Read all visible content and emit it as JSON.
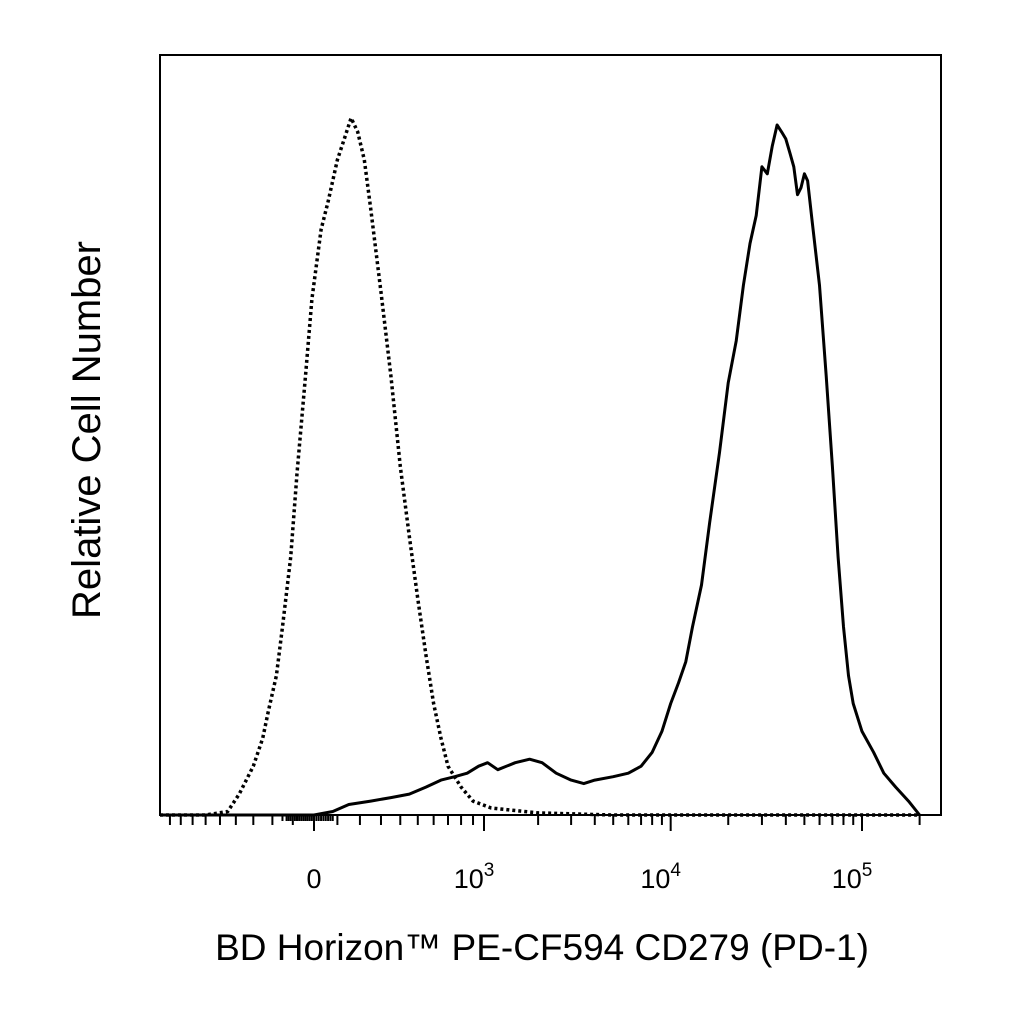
{
  "chart_data": {
    "type": "line",
    "title": "",
    "xlabel": "BD Horizon™ PE-CF594 CD279 (PD-1)",
    "ylabel": "Relative Cell Number",
    "x_scale": "biexponential",
    "xlim": [
      -1000,
      200000
    ],
    "ylim": [
      0,
      100
    ],
    "grid": false,
    "legend": "none",
    "x_tick_labels": [
      {
        "value": 0,
        "base": "0",
        "exp": ""
      },
      {
        "value": 1000,
        "base": "10",
        "exp": "3"
      },
      {
        "value": 10000,
        "base": "10",
        "exp": "4"
      },
      {
        "value": 100000,
        "base": "10",
        "exp": "5"
      }
    ],
    "series": [
      {
        "style": "dotted",
        "color": "#000000",
        "x": [
          -1000,
          -600,
          -450,
          -380,
          -300,
          -250,
          -220,
          -180,
          -150,
          -110,
          -80,
          -40,
          -10,
          30,
          60,
          100,
          130,
          160,
          190,
          220,
          250,
          300,
          350,
          400,
          450,
          500,
          550,
          600,
          650,
          700,
          800,
          900,
          1100,
          2000,
          5000,
          20000,
          200000
        ],
        "y": [
          0,
          0,
          0.5,
          3,
          7,
          11,
          15,
          20,
          27,
          37,
          49,
          63,
          74,
          84,
          88,
          94,
          97,
          100,
          98,
          94,
          87,
          75,
          63,
          50,
          40,
          31,
          23,
          16,
          11,
          7,
          4,
          2,
          1,
          0.3,
          0,
          0,
          0
        ]
      },
      {
        "style": "solid",
        "color": "#000000",
        "x": [
          -1000,
          0,
          80,
          150,
          250,
          350,
          450,
          550,
          650,
          750,
          850,
          950,
          1050,
          1200,
          1500,
          1800,
          2100,
          2500,
          3000,
          3500,
          4000,
          5000,
          6000,
          7000,
          8000,
          9000,
          10000,
          11000,
          12000,
          13000,
          14500,
          16000,
          18000,
          20000,
          22000,
          24000,
          26000,
          28000,
          30000,
          32000,
          34000,
          36000,
          38000,
          40000,
          42000,
          44000,
          46000,
          48000,
          50000,
          52000,
          55000,
          60000,
          65000,
          70000,
          75000,
          80000,
          85000,
          90000,
          100000,
          115000,
          130000,
          150000,
          175000,
          200000
        ],
        "y": [
          0,
          0,
          0.5,
          1.5,
          2,
          2.5,
          3,
          4,
          5,
          5.5,
          6,
          7,
          7.5,
          6.5,
          7.5,
          8,
          7.5,
          6,
          5,
          4.5,
          5,
          5.5,
          6,
          7,
          9,
          12,
          16,
          19,
          22,
          27,
          33,
          42,
          52,
          62,
          68,
          76,
          82,
          86,
          93,
          92,
          96,
          99,
          98,
          97,
          95,
          93,
          89,
          90,
          92,
          91,
          85,
          76,
          63,
          50,
          37,
          27,
          20,
          16,
          12,
          9,
          6,
          4,
          2,
          0
        ]
      }
    ]
  }
}
